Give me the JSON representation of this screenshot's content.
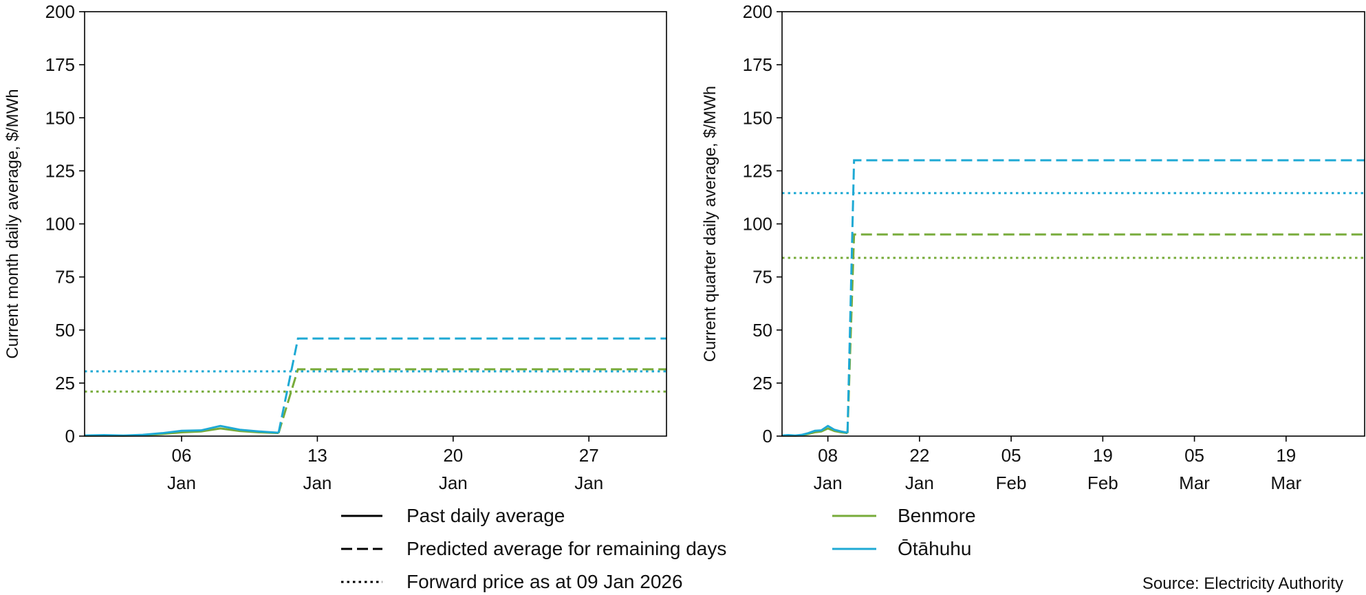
{
  "colors": {
    "benmore": "#77ab3a",
    "otahuhu": "#1ea9d4",
    "axis": "#000000"
  },
  "legend": {
    "styles": [
      {
        "label": "Past daily average",
        "dash": "solid"
      },
      {
        "label": "Predicted average for remaining days",
        "dash": "dashed"
      },
      {
        "label": "Forward price as at 09 Jan 2026",
        "dash": "dotted"
      }
    ],
    "series": [
      {
        "label": "Benmore",
        "color_key": "benmore"
      },
      {
        "label": "Ōtāhuhu",
        "color_key": "otahuhu"
      }
    ]
  },
  "source": "Source: Electricity Authority",
  "chart_data": [
    {
      "type": "line",
      "ylabel": "Current month daily average, $/MWh",
      "ylim": [
        0,
        200
      ],
      "yticks": [
        0,
        25,
        50,
        75,
        100,
        125,
        150,
        175,
        200
      ],
      "xlim": [
        "2026-01-01",
        "2026-01-31"
      ],
      "xticks": [
        {
          "date": "2026-01-06",
          "label": [
            "06",
            "Jan"
          ]
        },
        {
          "date": "2026-01-13",
          "label": [
            "13",
            "Jan"
          ]
        },
        {
          "date": "2026-01-20",
          "label": [
            "20",
            "Jan"
          ]
        },
        {
          "date": "2026-01-27",
          "label": [
            "27",
            "Jan"
          ]
        }
      ],
      "grid": false,
      "series": [
        {
          "name": "Benmore",
          "color_key": "benmore",
          "past": {
            "x": [
              "2026-01-01",
              "2026-01-02",
              "2026-01-03",
              "2026-01-04",
              "2026-01-05",
              "2026-01-06",
              "2026-01-07",
              "2026-01-08",
              "2026-01-09",
              "2026-01-10",
              "2026-01-11"
            ],
            "y": [
              0.2,
              0.3,
              0.2,
              0.4,
              1.0,
              1.8,
              2.2,
              3.6,
              2.4,
              1.8,
              1.4
            ]
          },
          "predicted": {
            "x": [
              "2026-01-11",
              "2026-01-12",
              "2026-01-31"
            ],
            "y": [
              1.4,
              31.5,
              31.5
            ]
          },
          "forward": 21
        },
        {
          "name": "Ōtāhuhu",
          "color_key": "otahuhu",
          "past": {
            "x": [
              "2026-01-01",
              "2026-01-02",
              "2026-01-03",
              "2026-01-04",
              "2026-01-05",
              "2026-01-06",
              "2026-01-07",
              "2026-01-08",
              "2026-01-09",
              "2026-01-10",
              "2026-01-11"
            ],
            "y": [
              0.3,
              0.5,
              0.3,
              0.6,
              1.4,
              2.5,
              2.7,
              4.8,
              3.0,
              2.2,
              1.6
            ]
          },
          "predicted": {
            "x": [
              "2026-01-11",
              "2026-01-12",
              "2026-01-31"
            ],
            "y": [
              1.6,
              46,
              46
            ]
          },
          "forward": 30.5
        }
      ]
    },
    {
      "type": "line",
      "ylabel": "Current quarter daily average, $/MWh",
      "ylim": [
        0,
        200
      ],
      "yticks": [
        0,
        25,
        50,
        75,
        100,
        125,
        150,
        175,
        200
      ],
      "xlim": [
        "2026-01-01",
        "2026-03-31"
      ],
      "xticks": [
        {
          "date": "2026-01-08",
          "label": [
            "08",
            "Jan"
          ]
        },
        {
          "date": "2026-01-22",
          "label": [
            "22",
            "Jan"
          ]
        },
        {
          "date": "2026-02-05",
          "label": [
            "05",
            "Feb"
          ]
        },
        {
          "date": "2026-02-19",
          "label": [
            "19",
            "Feb"
          ]
        },
        {
          "date": "2026-03-05",
          "label": [
            "05",
            "Mar"
          ]
        },
        {
          "date": "2026-03-19",
          "label": [
            "19",
            "Mar"
          ]
        }
      ],
      "grid": false,
      "series": [
        {
          "name": "Benmore",
          "color_key": "benmore",
          "past": {
            "x": [
              "2026-01-01",
              "2026-01-02",
              "2026-01-03",
              "2026-01-04",
              "2026-01-05",
              "2026-01-06",
              "2026-01-07",
              "2026-01-08",
              "2026-01-09",
              "2026-01-10",
              "2026-01-11"
            ],
            "y": [
              0.2,
              0.3,
              0.2,
              0.4,
              1.0,
              1.8,
              2.2,
              3.6,
              2.4,
              1.8,
              1.4
            ]
          },
          "predicted": {
            "x": [
              "2026-01-11",
              "2026-01-12",
              "2026-03-31"
            ],
            "y": [
              1.4,
              95,
              95
            ]
          },
          "forward": 84
        },
        {
          "name": "Ōtāhuhu",
          "color_key": "otahuhu",
          "past": {
            "x": [
              "2026-01-01",
              "2026-01-02",
              "2026-01-03",
              "2026-01-04",
              "2026-01-05",
              "2026-01-06",
              "2026-01-07",
              "2026-01-08",
              "2026-01-09",
              "2026-01-10",
              "2026-01-11"
            ],
            "y": [
              0.3,
              0.5,
              0.3,
              0.6,
              1.4,
              2.5,
              2.7,
              4.8,
              3.0,
              2.2,
              1.6
            ]
          },
          "predicted": {
            "x": [
              "2026-01-11",
              "2026-01-12",
              "2026-03-31"
            ],
            "y": [
              1.6,
              130,
              130
            ]
          },
          "forward": 114.5
        }
      ]
    }
  ]
}
